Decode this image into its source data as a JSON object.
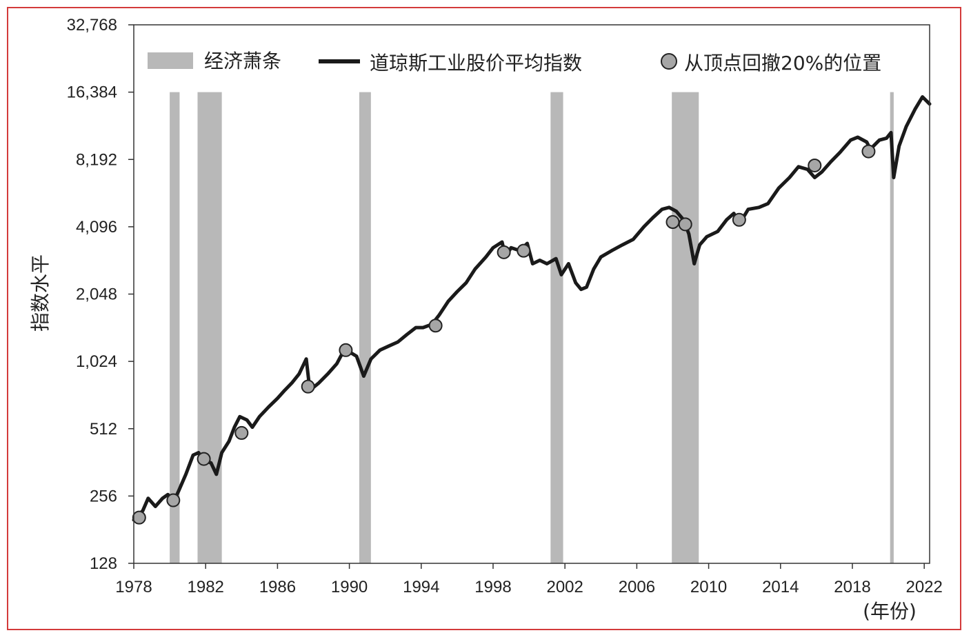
{
  "chart_data": {
    "type": "line",
    "ylabel": "指数水平",
    "xunit": "(年份)",
    "yscale": "log2",
    "ylim": [
      128,
      32768
    ],
    "xlim": [
      1978,
      2022.3
    ],
    "x_ticks": [
      1978,
      1982,
      1986,
      1990,
      1994,
      1998,
      2002,
      2006,
      2010,
      2014,
      2018,
      2022
    ],
    "y_ticks": [
      128,
      256,
      512,
      1024,
      2048,
      4096,
      8192,
      16384,
      32768
    ],
    "y_tick_labels": [
      "128",
      "256",
      "512",
      "1,024",
      "2,048",
      "4,096",
      "8,192",
      "16,384",
      "32,768"
    ],
    "legend": {
      "placement": "top",
      "entries": [
        {
          "label": "经济萧条",
          "marker": "band"
        },
        {
          "label": "道琼斯工业股价平均指数",
          "marker": "line"
        },
        {
          "label": "从顶点回撤20%的位置",
          "marker": "circle"
        }
      ]
    },
    "colors": {
      "recession": "#b8b8b8",
      "line": "#1a1a1a",
      "marker_fill": "#a6a6a6",
      "marker_edge": "#222222",
      "frame": "#d33a3a"
    },
    "recessions": [
      {
        "start": 1980.0,
        "end": 1980.55
      },
      {
        "start": 1981.55,
        "end": 1982.9
      },
      {
        "start": 1990.55,
        "end": 1991.2
      },
      {
        "start": 2001.2,
        "end": 2001.9
      },
      {
        "start": 2007.95,
        "end": 2009.45
      },
      {
        "start": 2020.1,
        "end": 2020.3
      }
    ],
    "series": [
      {
        "name": "道琼斯工业股价平均指数",
        "x": [
          1978.0,
          1978.5,
          1978.8,
          1979.2,
          1979.6,
          1979.9,
          1980.2,
          1980.5,
          1980.9,
          1981.3,
          1981.6,
          1981.9,
          1982.3,
          1982.6,
          1982.9,
          1983.3,
          1983.6,
          1983.9,
          1984.3,
          1984.6,
          1985.0,
          1985.5,
          1986.0,
          1986.4,
          1986.8,
          1987.2,
          1987.6,
          1987.8,
          1988.3,
          1988.8,
          1989.3,
          1989.7,
          1990.0,
          1990.4,
          1990.8,
          1991.2,
          1991.7,
          1992.2,
          1992.7,
          1993.2,
          1993.7,
          1994.1,
          1994.6,
          1995.0,
          1995.5,
          1996.0,
          1996.5,
          1997.0,
          1997.6,
          1998.0,
          1998.5,
          1998.7,
          1999.0,
          1999.5,
          1999.9,
          2000.2,
          2000.6,
          2001.0,
          2001.5,
          2001.8,
          2002.2,
          2002.6,
          2002.9,
          2003.2,
          2003.6,
          2004.0,
          2004.6,
          2005.2,
          2005.8,
          2006.4,
          2006.9,
          2007.4,
          2007.8,
          2008.2,
          2008.6,
          2008.9,
          2009.2,
          2009.5,
          2009.9,
          2010.5,
          2011.0,
          2011.4,
          2011.7,
          2012.2,
          2012.8,
          2013.3,
          2013.9,
          2014.5,
          2015.0,
          2015.5,
          2015.9,
          2016.3,
          2016.8,
          2017.3,
          2017.9,
          2018.3,
          2018.8,
          2019.0,
          2019.5,
          2019.9,
          2020.15,
          2020.3,
          2020.6,
          2021.0,
          2021.5,
          2021.9,
          2022.3
        ],
        "values": [
          200,
          220,
          250,
          230,
          250,
          260,
          240,
          270,
          320,
          390,
          400,
          370,
          360,
          320,
          400,
          450,
          520,
          580,
          560,
          520,
          580,
          640,
          700,
          760,
          820,
          900,
          1050,
          760,
          820,
          900,
          1000,
          1150,
          1130,
          1080,
          880,
          1050,
          1150,
          1200,
          1250,
          1350,
          1450,
          1450,
          1500,
          1650,
          1900,
          2100,
          2300,
          2650,
          3000,
          3300,
          3500,
          3000,
          3300,
          3200,
          3450,
          2800,
          2900,
          2800,
          2950,
          2500,
          2800,
          2300,
          2150,
          2200,
          2650,
          3000,
          3200,
          3400,
          3600,
          4100,
          4500,
          4900,
          5000,
          4800,
          4400,
          3800,
          2800,
          3400,
          3700,
          3900,
          4400,
          4700,
          4200,
          4900,
          5000,
          5200,
          6100,
          6800,
          7600,
          7400,
          6800,
          7200,
          8000,
          8800,
          10000,
          10300,
          9800,
          9100,
          10000,
          10200,
          10800,
          6800,
          9400,
          11500,
          13800,
          15600,
          14500
        ]
      }
    ],
    "drawdown_markers": {
      "name": "从顶点回撤20%的位置",
      "x": [
        1978.3,
        1980.2,
        1981.9,
        1984.0,
        1987.7,
        1989.8,
        1994.8,
        1998.6,
        1999.7,
        2008.0,
        2008.7,
        2011.7,
        2015.9,
        2018.9
      ],
      "values": [
        205,
        245,
        375,
        490,
        790,
        1150,
        1480,
        3150,
        3200,
        4300,
        4200,
        4400,
        7700,
        8900
      ]
    }
  }
}
